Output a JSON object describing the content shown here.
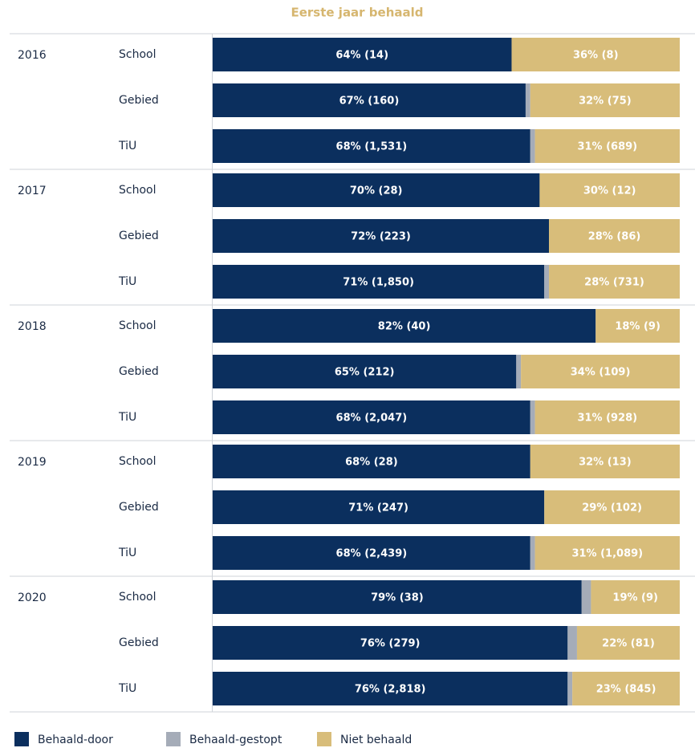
{
  "chart_data": {
    "type": "stacked-bar-horizontal",
    "title": "Eerste jaar behaald",
    "groups": [
      "2016",
      "2017",
      "2018",
      "2019",
      "2020"
    ],
    "categories": [
      "School",
      "Gebied",
      "TiU",
      "School",
      "Gebied",
      "TiU",
      "School",
      "Gebied",
      "TiU",
      "School",
      "Gebied",
      "TiU",
      "School",
      "Gebied",
      "TiU"
    ],
    "xlim": [
      0,
      100
    ],
    "series": [
      {
        "name": "Behaald-door",
        "color": "#0b2f5e",
        "values": [
          64,
          67,
          68,
          70,
          72,
          71,
          82,
          65,
          68,
          68,
          71,
          68,
          79,
          76,
          76
        ],
        "value_labels": [
          "64% (14)",
          "67% (160)",
          "68% (1,531)",
          "70% (28)",
          "72% (223)",
          "71% (1,850)",
          "82% (40)",
          "65% (212)",
          "68% (2,047)",
          "68% (28)",
          "71% (247)",
          "68% (2,439)",
          "79% (38)",
          "76% (279)",
          "76% (2,818)"
        ]
      },
      {
        "name": "Behaald-gestopt",
        "color": "#a5acb8",
        "values": [
          0,
          1,
          1,
          0,
          0,
          1,
          0,
          1,
          1,
          0,
          0,
          1,
          2,
          2,
          1
        ]
      },
      {
        "name": "Niet behaald",
        "color": "#d8bd7a",
        "values": [
          36,
          32,
          31,
          30,
          28,
          28,
          18,
          34,
          31,
          32,
          29,
          31,
          19,
          22,
          23
        ],
        "value_labels": [
          "36% (8)",
          "32% (75)",
          "31% (689)",
          "30% (12)",
          "28% (86)",
          "28% (731)",
          "18% (9)",
          "34% (109)",
          "31% (928)",
          "32% (13)",
          "29% (102)",
          "31% (1,089)",
          "19% (9)",
          "22% (81)",
          "23% (845)"
        ]
      }
    ]
  }
}
